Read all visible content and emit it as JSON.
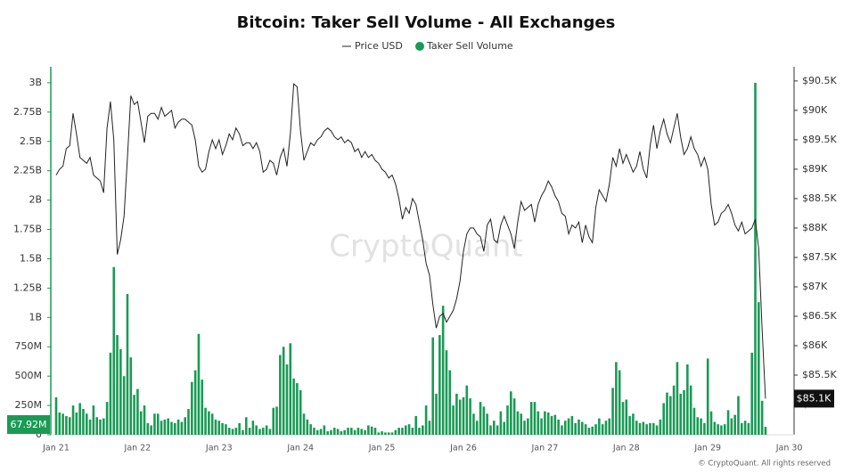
{
  "chart_data": {
    "type": "bar-line",
    "title": "Bitcoin: Taker Sell Volume - All Exchanges",
    "watermark": "CryptoQuant",
    "footer": "© CryptoQuant. All rights reserved",
    "categories": [
      "Jan 21",
      null,
      null,
      null,
      null,
      null,
      null,
      null,
      null,
      null,
      null,
      null,
      null,
      null,
      null,
      null,
      null,
      null,
      null,
      null,
      null,
      null,
      null,
      null,
      "Jan 22",
      null,
      null,
      null,
      null,
      null,
      null,
      null,
      null,
      null,
      null,
      null,
      null,
      null,
      null,
      null,
      null,
      null,
      null,
      null,
      null,
      null,
      null,
      null,
      "Jan 23",
      null,
      null,
      null,
      null,
      null,
      null,
      null,
      null,
      null,
      null,
      null,
      null,
      null,
      null,
      null,
      null,
      null,
      null,
      null,
      null,
      null,
      null,
      null,
      "Jan 24",
      null,
      null,
      null,
      null,
      null,
      null,
      null,
      null,
      null,
      null,
      null,
      null,
      null,
      null,
      null,
      null,
      null,
      null,
      null,
      null,
      null,
      null,
      null,
      "Jan 25",
      null,
      null,
      null,
      null,
      null,
      null,
      null,
      null,
      null,
      null,
      null,
      null,
      null,
      null,
      null,
      null,
      null,
      null,
      null,
      null,
      null,
      null,
      null,
      "Jan 26",
      null,
      null,
      null,
      null,
      null,
      null,
      null,
      null,
      null,
      null,
      null,
      null,
      null,
      null,
      null,
      null,
      null,
      null,
      null,
      null,
      null,
      null,
      null,
      "Jan 27",
      null,
      null,
      null,
      null,
      null,
      null,
      null,
      null,
      null,
      null,
      null,
      null,
      null,
      null,
      null,
      null,
      null,
      null,
      null,
      null,
      null,
      null,
      null,
      "Jan 28",
      null,
      null,
      null,
      null,
      null,
      null,
      null,
      null,
      null,
      null,
      null,
      null,
      null,
      null,
      null,
      null,
      null,
      null,
      null,
      null,
      null,
      null,
      null,
      "Jan 29",
      null,
      null,
      null,
      null,
      null,
      null,
      null,
      null,
      null,
      null,
      null,
      null,
      null,
      null,
      null,
      null,
      null,
      null,
      null,
      null,
      null,
      null,
      null,
      "Jan 30"
    ],
    "series": [
      {
        "name": "Price USD",
        "type": "line",
        "axis": "y2",
        "color": "#222222",
        "last_label": "$85.1K",
        "values": [
          88900,
          89000,
          89050,
          89350,
          89400,
          89950,
          89600,
          89200,
          89150,
          89100,
          89200,
          88900,
          88850,
          88800,
          88600,
          89700,
          90150,
          89500,
          87550,
          87800,
          88200,
          89200,
          90250,
          90100,
          90150,
          89800,
          89450,
          89900,
          89950,
          89950,
          89850,
          90050,
          89900,
          89950,
          90000,
          89700,
          89800,
          89850,
          89850,
          89800,
          89750,
          89500,
          89050,
          88950,
          89000,
          89300,
          89500,
          89350,
          89500,
          89250,
          89400,
          89600,
          89500,
          89700,
          89600,
          89400,
          89450,
          89450,
          89350,
          89450,
          89300,
          88950,
          89000,
          89150,
          89100,
          88900,
          89200,
          89350,
          89050,
          89600,
          90450,
          90400,
          89650,
          89150,
          89300,
          89450,
          89400,
          89500,
          89550,
          89650,
          89700,
          89650,
          89550,
          89500,
          89550,
          89450,
          89500,
          89450,
          89300,
          89350,
          89200,
          89300,
          89200,
          89250,
          89150,
          89100,
          89000,
          88950,
          88850,
          88900,
          88750,
          88500,
          88150,
          88350,
          88250,
          88500,
          88400,
          88100,
          87800,
          87400,
          87200,
          86700,
          86300,
          86500,
          86550,
          86400,
          86500,
          86600,
          86800,
          87100,
          87600,
          87900,
          88000,
          88000,
          87900,
          87850,
          87600,
          88050,
          88150,
          87800,
          87750,
          88050,
          88200,
          88050,
          87900,
          87650,
          88100,
          88450,
          88300,
          88350,
          88400,
          88100,
          88400,
          88550,
          88650,
          88800,
          88700,
          88550,
          88450,
          88250,
          88200,
          87900,
          88050,
          88000,
          88100,
          87750,
          88050,
          87850,
          87750,
          88350,
          88650,
          88550,
          88450,
          88750,
          89200,
          89050,
          89350,
          89100,
          89250,
          89100,
          88950,
          89050,
          89300,
          89000,
          88850,
          89400,
          89750,
          89350,
          89650,
          89850,
          89600,
          89450,
          89700,
          89950,
          89550,
          89250,
          89350,
          89550,
          89350,
          89250,
          89050,
          89200,
          89000,
          88400,
          88050,
          88100,
          88250,
          88300,
          88400,
          88250,
          88050,
          87950,
          88100,
          87900,
          87950,
          88000,
          88150,
          87650,
          86300,
          85100,
          null,
          null,
          null,
          null,
          null,
          null,
          null
        ]
      },
      {
        "name": "Taker Sell Volume",
        "type": "bar",
        "axis": "y",
        "color": "#1a9a55",
        "last_label": "67.92M",
        "values": [
          320,
          190,
          180,
          160,
          150,
          250,
          190,
          270,
          220,
          180,
          130,
          250,
          150,
          130,
          140,
          280,
          700,
          1430,
          850,
          730,
          500,
          1200,
          660,
          340,
          390,
          200,
          250,
          100,
          80,
          180,
          180,
          120,
          130,
          140,
          110,
          100,
          130,
          110,
          150,
          220,
          450,
          550,
          860,
          470,
          230,
          200,
          180,
          130,
          120,
          100,
          90,
          60,
          50,
          60,
          100,
          40,
          150,
          60,
          120,
          80,
          50,
          60,
          80,
          50,
          230,
          240,
          680,
          750,
          600,
          780,
          480,
          440,
          380,
          180,
          130,
          90,
          60,
          40,
          50,
          80,
          30,
          40,
          60,
          50,
          30,
          40,
          60,
          60,
          40,
          60,
          50,
          40,
          80,
          70,
          60,
          20,
          30,
          20,
          20,
          20,
          40,
          60,
          60,
          80,
          90,
          60,
          160,
          60,
          80,
          250,
          120,
          830,
          350,
          850,
          1100,
          720,
          550,
          250,
          350,
          300,
          320,
          420,
          310,
          180,
          120,
          280,
          240,
          180,
          80,
          120,
          80,
          200,
          110,
          250,
          370,
          310,
          200,
          180,
          120,
          140,
          280,
          280,
          200,
          140,
          200,
          190,
          160,
          170,
          130,
          80,
          120,
          140,
          160,
          100,
          130,
          110,
          90,
          60,
          70,
          90,
          140,
          90,
          120,
          140,
          400,
          620,
          550,
          280,
          300,
          160,
          180,
          120,
          100,
          110,
          90,
          100,
          100,
          80,
          130,
          270,
          360,
          330,
          420,
          620,
          350,
          380,
          600,
          420,
          230,
          150,
          140,
          100,
          650,
          200,
          110,
          90,
          80,
          90,
          210,
          140,
          170,
          330,
          100,
          120,
          100,
          700,
          3000,
          1130,
          290,
          67.92,
          null,
          null,
          null,
          null,
          null,
          null,
          null
        ]
      }
    ],
    "ylim": [
      0,
      3136
    ],
    "yticks": [
      0,
      {
        "value": 250,
        "label": "250M"
      },
      {
        "value": 500,
        "label": "500M"
      },
      {
        "value": 750,
        "label": "750M"
      },
      {
        "value": 1000,
        "label": "1B"
      },
      {
        "value": 1250,
        "label": "1.25B"
      },
      {
        "value": 1500,
        "label": "1.5B"
      },
      {
        "value": 1750,
        "label": "1.75B"
      },
      {
        "value": 2000,
        "label": "2B"
      },
      {
        "value": 2250,
        "label": "2.25B"
      },
      {
        "value": 2500,
        "label": "2.5B"
      },
      {
        "value": 2750,
        "label": "2.75B"
      },
      {
        "value": 3000,
        "label": "3B"
      }
    ],
    "y2lim": [
      84485,
      90740
    ],
    "y2ticks": [
      {
        "value": 85000,
        "label": "$85K"
      },
      {
        "value": 85500,
        "label": "$85.5K"
      },
      {
        "value": 86000,
        "label": "$86K"
      },
      {
        "value": 86500,
        "label": "$86.5K"
      },
      {
        "value": 87000,
        "label": "$87K"
      },
      {
        "value": 87500,
        "label": "$87.5K"
      },
      {
        "value": 88000,
        "label": "$88K"
      },
      {
        "value": 88500,
        "label": "$88.5K"
      },
      {
        "value": 89000,
        "label": "$89K"
      },
      {
        "value": 89500,
        "label": "$89.5K"
      },
      {
        "value": 90000,
        "label": "$90K"
      },
      {
        "value": 90500,
        "label": "$90.5K"
      }
    ],
    "grid": false,
    "legend": "top"
  }
}
